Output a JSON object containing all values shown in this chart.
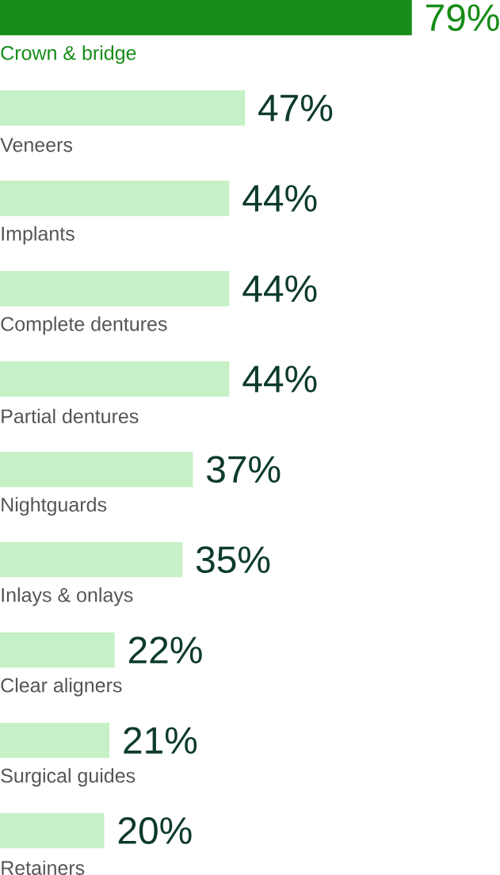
{
  "chart_data": {
    "type": "bar",
    "orientation": "horizontal",
    "categories": [
      "Crown & bridge",
      "Veneers",
      "Implants",
      "Complete dentures",
      "Partial dentures",
      "Nightguards",
      "Inlays & onlays",
      "Clear aligners",
      "Surgical guides",
      "Retainers"
    ],
    "values": [
      79,
      47,
      44,
      44,
      44,
      37,
      35,
      22,
      21,
      20
    ],
    "value_labels": [
      "79%",
      "47%",
      "44%",
      "44%",
      "44%",
      "37%",
      "35%",
      "22%",
      "21%",
      "20%"
    ],
    "colors": [
      "#178c17",
      "#c6f0c6",
      "#c6f0c6",
      "#c6f0c6",
      "#c6f0c6",
      "#c6f0c6",
      "#c6f0c6",
      "#c6f0c6",
      "#c6f0c6",
      "#c6f0c6"
    ],
    "data_labels": false
  }
}
